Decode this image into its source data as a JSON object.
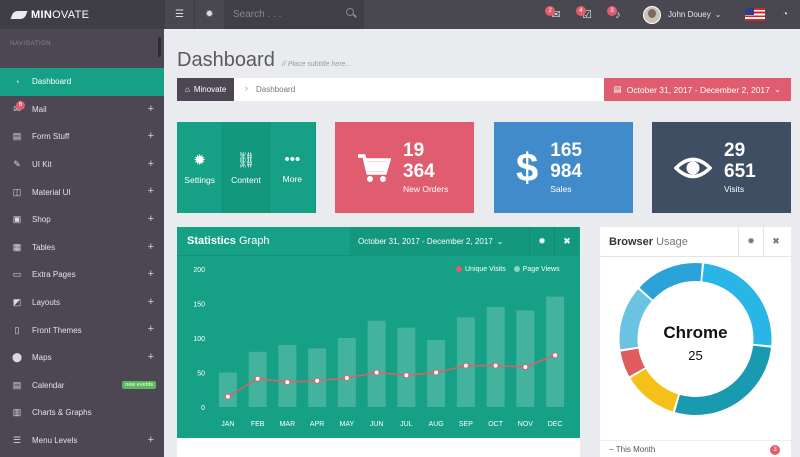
{
  "app": {
    "brand_bold": "MIN",
    "brand_rest": "OVATE"
  },
  "topbar": {
    "search_placeholder": "Search . . .",
    "notifications": [
      {
        "icon": "envelope-icon",
        "count": "2"
      },
      {
        "icon": "tasks-icon",
        "count": "4"
      },
      {
        "icon": "bell-icon",
        "count": "3"
      }
    ],
    "user_name": "John Douey",
    "user_caret": "⌄"
  },
  "sidebar": {
    "heading": "Navigation",
    "items": [
      {
        "label": "Dashboard",
        "icon": "dashboard-icon",
        "glyph": "◔",
        "active": true
      },
      {
        "label": "Mail",
        "icon": "mail-icon",
        "glyph": "✉",
        "badge": "6",
        "expand": "+"
      },
      {
        "label": "Form Stuff",
        "icon": "form-icon",
        "glyph": "▤",
        "expand": "+"
      },
      {
        "label": "UI Kit",
        "icon": "pencil-icon",
        "glyph": "✎",
        "expand": "+"
      },
      {
        "label": "Material UI",
        "icon": "material-icon",
        "glyph": "◫",
        "expand": "+"
      },
      {
        "label": "Shop",
        "icon": "shop-icon",
        "glyph": "▣",
        "expand": "+"
      },
      {
        "label": "Tables",
        "icon": "table-icon",
        "glyph": "▦",
        "expand": "+"
      },
      {
        "label": "Extra Pages",
        "icon": "desktop-icon",
        "glyph": "▭",
        "expand": "+"
      },
      {
        "label": "Layouts",
        "icon": "layouts-icon",
        "glyph": "◩",
        "expand": "+"
      },
      {
        "label": "Front Themes",
        "icon": "file-icon",
        "glyph": "▯",
        "expand": "+"
      },
      {
        "label": "Maps",
        "icon": "map-marker-icon",
        "glyph": "⬤",
        "expand": "+"
      },
      {
        "label": "Calendar",
        "icon": "calendar-icon",
        "glyph": "▤",
        "tag": "new events"
      },
      {
        "label": "Charts & Graphs",
        "icon": "chart-icon",
        "glyph": "▥"
      },
      {
        "label": "Menu Levels",
        "icon": "menu-levels-icon",
        "glyph": "☰",
        "expand": "+"
      }
    ]
  },
  "page": {
    "title": "Dashboard",
    "subtitle": "// Place subtitle here...",
    "breadcrumb_home": "Minovate",
    "breadcrumb_current": "Dashboard",
    "date_range": "October 31, 2017 - December 2, 2017"
  },
  "tiles": {
    "quick": [
      {
        "label": "Settings",
        "icon": "gear-icon",
        "glyph": "✹"
      },
      {
        "label": "Content",
        "icon": "unlink-icon",
        "glyph": "⛓"
      },
      {
        "label": "More",
        "icon": "more-icon",
        "glyph": "•••"
      }
    ],
    "orders": {
      "value_line1": "19",
      "value_line2": "364",
      "label": "New Orders",
      "icon": "cart-icon"
    },
    "sales": {
      "value_line1": "165",
      "value_line2": "984",
      "label": "Sales",
      "icon": "dollar-icon",
      "glyph": "$"
    },
    "visits": {
      "value_line1": "29",
      "value_line2": "651",
      "label": "Visits",
      "icon": "eye-icon"
    }
  },
  "stats_panel": {
    "title_bold": "Statistics",
    "title_rest": " Graph",
    "date_range": "October 31, 2017 - December 2, 2017",
    "caret": "⌄",
    "settings_glyph": "✹",
    "close_glyph": "✖"
  },
  "chart_data": {
    "type": "bar",
    "categories": [
      "JAN",
      "FEB",
      "MAR",
      "APR",
      "MAY",
      "JUN",
      "JUL",
      "AUG",
      "SEP",
      "OCT",
      "NOV",
      "DEC"
    ],
    "series": [
      {
        "name": "Unique Visits",
        "type": "line",
        "values": [
          15,
          41,
          36,
          38,
          42,
          50,
          46,
          50,
          60,
          60,
          58,
          75
        ]
      },
      {
        "name": "Page Views",
        "type": "bar",
        "values": [
          50,
          80,
          90,
          85,
          100,
          125,
          115,
          97,
          130,
          145,
          140,
          160
        ]
      }
    ],
    "yticks": [
      0,
      50,
      100,
      150,
      200
    ],
    "ylim": [
      0,
      200
    ],
    "colors": {
      "line": "#e05d6f",
      "bars": "rgba(255,255,255,0.2)"
    },
    "legend_position": "top-right"
  },
  "browser_panel": {
    "title_bold": "Browser",
    "title_rest": " Usage",
    "settings_glyph": "✹",
    "close_glyph": "✖",
    "selected_name": "Chrome",
    "selected_value": "25",
    "segments": [
      {
        "name": "Chrome",
        "value": 25,
        "color": "#29b6e6"
      },
      {
        "name": "",
        "value": 28,
        "color": "#1a9ab0"
      },
      {
        "name": "",
        "value": 12,
        "color": "#f5c018"
      },
      {
        "name": "",
        "value": 6,
        "color": "#e05d5f"
      },
      {
        "name": "",
        "value": 14,
        "color": "#6ac3e0"
      },
      {
        "name": "",
        "value": 15,
        "color": "#2ca3d8"
      }
    ],
    "footer_label": "This Month",
    "footer_count": "3"
  }
}
